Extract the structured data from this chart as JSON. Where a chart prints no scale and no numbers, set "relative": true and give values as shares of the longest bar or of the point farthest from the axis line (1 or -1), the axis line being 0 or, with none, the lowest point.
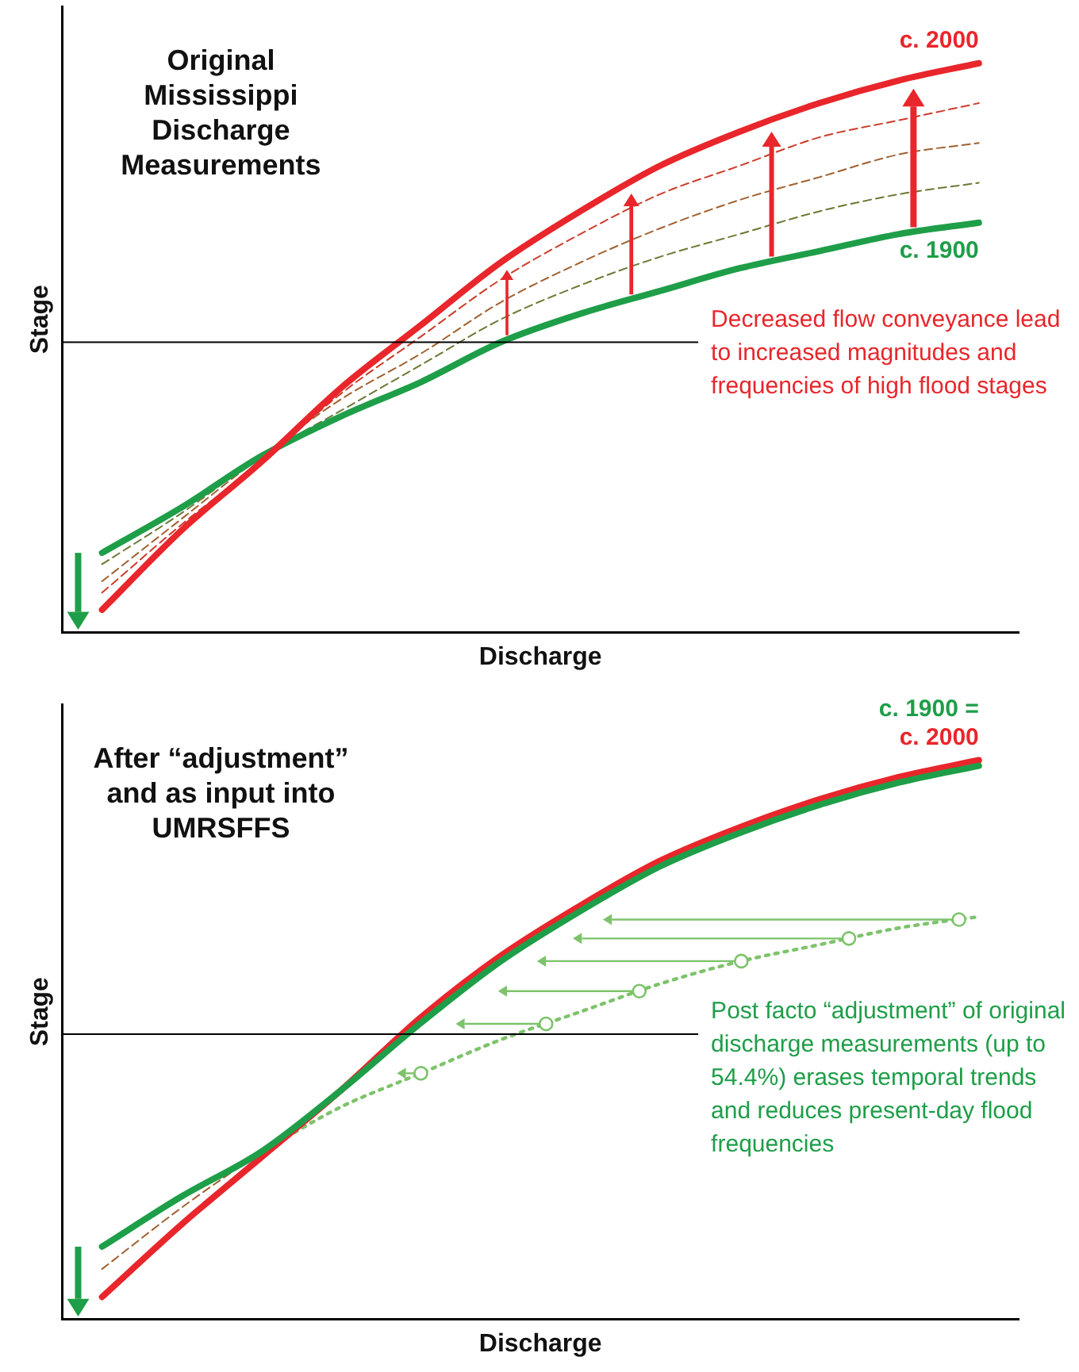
{
  "chart_data": [
    {
      "type": "line",
      "title": "Original Mississippi Discharge Measurements",
      "xlabel": "Discharge",
      "ylabel": "Stage",
      "relative": true,
      "legend": false,
      "grid": false,
      "marker": "none",
      "line_style": "solid",
      "categories": [
        null,
        null,
        null,
        null,
        null,
        null,
        null,
        null,
        null,
        null,
        null,
        null
      ],
      "series": [
        {
          "name": "c. 2000",
          "color": "#e8262b",
          "values": [
            0.04,
            0.18,
            0.3,
            0.43,
            0.54,
            0.65,
            0.74,
            0.82,
            0.88,
            0.93,
            0.97,
            1.0
          ]
        },
        {
          "name": "c. 1900",
          "color": "#1e9e48",
          "values": [
            0.14,
            0.22,
            0.31,
            0.38,
            0.44,
            0.51,
            0.56,
            0.6,
            0.64,
            0.67,
            0.7,
            0.72
          ]
        },
        {
          "color": "#6a7a35",
          "line_style": "dashed",
          "values": [
            0.12,
            0.21,
            0.31,
            0.39,
            0.47,
            0.55,
            0.61,
            0.66,
            0.7,
            0.74,
            0.77,
            0.79
          ]
        },
        {
          "color": "#a0602f",
          "line_style": "dashed",
          "values": [
            0.09,
            0.2,
            0.31,
            0.41,
            0.49,
            0.58,
            0.65,
            0.71,
            0.76,
            0.8,
            0.84,
            0.86
          ]
        },
        {
          "color": "#cc3c2c",
          "line_style": "dashed",
          "values": [
            0.07,
            0.19,
            0.3,
            0.42,
            0.52,
            0.62,
            0.7,
            0.77,
            0.82,
            0.87,
            0.9,
            0.93
          ]
        }
      ],
      "ref_lines": [
        {
          "axis": "y",
          "value": 0.51,
          "color": "#000000",
          "label": "Decreased flow conveyance lead to increased magnitudes and frequencies of high flood stages"
        }
      ]
    },
    {
      "type": "line",
      "title": "After “adjustment” and as input into UMRSFFS",
      "xlabel": "Discharge",
      "ylabel": "Stage",
      "relative": true,
      "legend": false,
      "grid": false,
      "marker": "none",
      "line_style": "solid",
      "categories": [
        null,
        null,
        null,
        null,
        null,
        null,
        null,
        null,
        null,
        null,
        null,
        null
      ],
      "series": [
        {
          "name": "c. 1900 =",
          "color": "#1e9e48",
          "values": [
            0.13,
            0.22,
            0.3,
            0.41,
            0.53,
            0.64,
            0.73,
            0.81,
            0.87,
            0.92,
            0.96,
            0.99
          ]
        },
        {
          "name": "c. 2000",
          "color": "#e8262b",
          "values": [
            0.04,
            0.17,
            0.29,
            0.41,
            0.54,
            0.65,
            0.74,
            0.82,
            0.88,
            0.93,
            0.97,
            1.0
          ]
        },
        {
          "color": "#a0602f",
          "line_style": "dashed",
          "values": [
            0.09,
            0.2,
            0.3,
            null,
            null,
            null,
            null,
            null,
            null,
            null,
            null,
            null
          ]
        },
        {
          "color": "#7dc36b",
          "line_style": "dotted",
          "values": [
            null,
            null,
            0.3,
            0.38,
            0.44,
            0.5,
            0.55,
            0.6,
            0.64,
            0.67,
            0.7,
            0.72
          ]
        }
      ],
      "ref_lines": [
        {
          "axis": "y",
          "value": 0.51,
          "color": "#000000",
          "label": "Post facto “adjustment” of original discharge measurements (up to 54.4%) erases temporal trends and reduces present-day flood frequencies"
        }
      ]
    }
  ]
}
